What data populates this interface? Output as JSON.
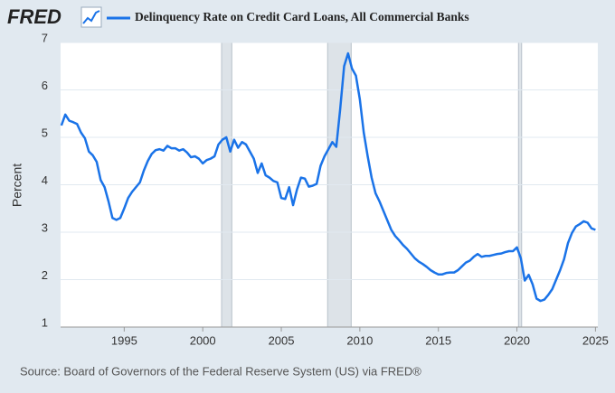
{
  "brand": "FRED",
  "source": "Source: Board of Governors of the Federal Reserve System (US) via FRED®",
  "chart_data": {
    "type": "line",
    "y_label": "Percent",
    "xlim": [
      1990.95,
      2025.15
    ],
    "xticks": [
      1995,
      2000,
      2005,
      2010,
      2015,
      2020,
      2025
    ],
    "ylim": [
      1,
      7
    ],
    "yticks": [
      1,
      2,
      3,
      4,
      5,
      6,
      7
    ],
    "grid": true,
    "recessions": [
      [
        2001.2,
        2001.85
      ],
      [
        2007.95,
        2009.45
      ],
      [
        2020.1,
        2020.3
      ]
    ],
    "series": [
      {
        "name": "Delinquency Rate on Credit Card Loans, All Commercial Banks",
        "color": "#1a73e8",
        "x": [
          1991.0,
          1991.25,
          1991.5,
          1991.75,
          1992.0,
          1992.25,
          1992.5,
          1992.75,
          1993.0,
          1993.25,
          1993.5,
          1993.75,
          1994.0,
          1994.25,
          1994.5,
          1994.75,
          1995.0,
          1995.25,
          1995.5,
          1995.75,
          1996.0,
          1996.25,
          1996.5,
          1996.75,
          1997.0,
          1997.25,
          1997.5,
          1997.75,
          1998.0,
          1998.25,
          1998.5,
          1998.75,
          1999.0,
          1999.25,
          1999.5,
          1999.75,
          2000.0,
          2000.25,
          2000.5,
          2000.75,
          2001.0,
          2001.25,
          2001.5,
          2001.75,
          2002.0,
          2002.25,
          2002.5,
          2002.75,
          2003.0,
          2003.25,
          2003.5,
          2003.75,
          2004.0,
          2004.25,
          2004.5,
          2004.75,
          2005.0,
          2005.25,
          2005.5,
          2005.75,
          2006.0,
          2006.25,
          2006.5,
          2006.75,
          2007.0,
          2007.25,
          2007.5,
          2007.75,
          2008.0,
          2008.25,
          2008.5,
          2008.75,
          2009.0,
          2009.25,
          2009.5,
          2009.75,
          2010.0,
          2010.25,
          2010.5,
          2010.75,
          2011.0,
          2011.25,
          2011.5,
          2011.75,
          2012.0,
          2012.25,
          2012.5,
          2012.75,
          2013.0,
          2013.25,
          2013.5,
          2013.75,
          2014.0,
          2014.25,
          2014.5,
          2014.75,
          2015.0,
          2015.25,
          2015.5,
          2015.75,
          2016.0,
          2016.25,
          2016.5,
          2016.75,
          2017.0,
          2017.25,
          2017.5,
          2017.75,
          2018.0,
          2018.25,
          2018.5,
          2018.75,
          2019.0,
          2019.25,
          2019.5,
          2019.75,
          2020.0,
          2020.25,
          2020.5,
          2020.75,
          2021.0,
          2021.25,
          2021.5,
          2021.75,
          2022.0,
          2022.25,
          2022.5,
          2022.75,
          2023.0,
          2023.25,
          2023.5,
          2023.75,
          2024.0,
          2024.25,
          2024.5,
          2024.75,
          2025.0
        ],
        "values": [
          5.25,
          5.48,
          5.35,
          5.32,
          5.28,
          5.1,
          4.98,
          4.7,
          4.62,
          4.48,
          4.1,
          3.95,
          3.65,
          3.3,
          3.26,
          3.3,
          3.5,
          3.72,
          3.85,
          3.95,
          4.05,
          4.3,
          4.5,
          4.65,
          4.73,
          4.75,
          4.72,
          4.82,
          4.77,
          4.77,
          4.72,
          4.75,
          4.68,
          4.58,
          4.6,
          4.55,
          4.45,
          4.52,
          4.55,
          4.6,
          4.85,
          4.95,
          5.0,
          4.7,
          4.95,
          4.78,
          4.9,
          4.85,
          4.7,
          4.55,
          4.25,
          4.45,
          4.2,
          4.15,
          4.08,
          4.05,
          3.72,
          3.7,
          3.95,
          3.57,
          3.9,
          4.15,
          4.13,
          3.96,
          3.98,
          4.02,
          4.4,
          4.6,
          4.75,
          4.9,
          4.8,
          5.6,
          6.5,
          6.77,
          6.45,
          6.3,
          5.8,
          5.1,
          4.6,
          4.15,
          3.82,
          3.65,
          3.45,
          3.25,
          3.05,
          2.92,
          2.83,
          2.73,
          2.65,
          2.55,
          2.45,
          2.38,
          2.33,
          2.27,
          2.2,
          2.15,
          2.11,
          2.11,
          2.14,
          2.15,
          2.15,
          2.2,
          2.28,
          2.36,
          2.4,
          2.48,
          2.54,
          2.48,
          2.5,
          2.5,
          2.52,
          2.54,
          2.55,
          2.58,
          2.6,
          2.6,
          2.68,
          2.45,
          1.98,
          2.1,
          1.9,
          1.6,
          1.55,
          1.58,
          1.68,
          1.8,
          2.0,
          2.2,
          2.43,
          2.77,
          2.98,
          3.12,
          3.17,
          3.23,
          3.2,
          3.08,
          3.05
        ]
      }
    ]
  }
}
